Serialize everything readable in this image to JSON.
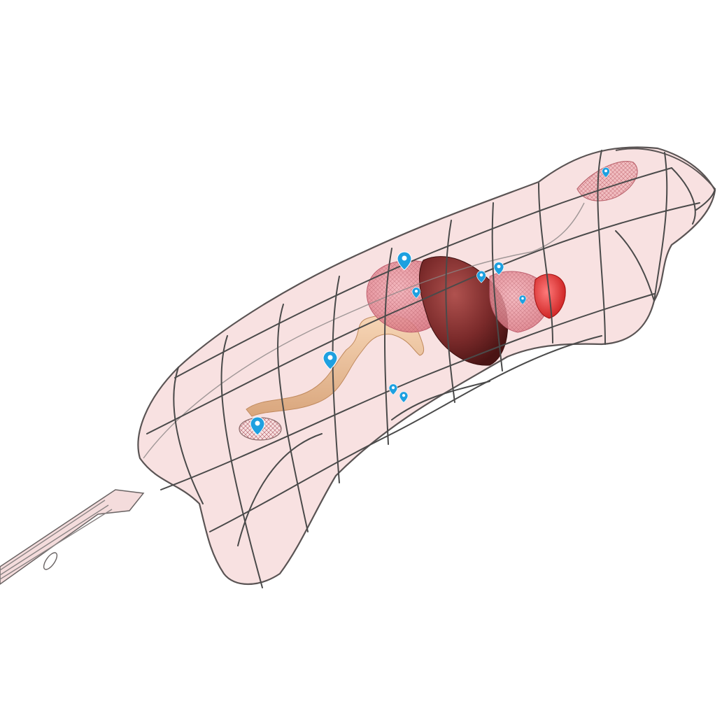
{
  "scene": {
    "background": "#ffffff",
    "colors": {
      "body_fill": "#f2c9c9",
      "body_stroke": "#4a4a4a",
      "liver": "#7a2a2a",
      "lung": "#e58a95",
      "heart": "#e23a3a",
      "intestine": "#f0c6a0",
      "brain": "#d77f86",
      "marker": "#1ea0e0"
    },
    "organs": [
      {
        "name": "brain",
        "icon": "brain-mesh"
      },
      {
        "name": "heart",
        "icon": "heart-mesh"
      },
      {
        "name": "lungs",
        "icon": "lung-mesh"
      },
      {
        "name": "liver",
        "icon": "liver-mesh"
      },
      {
        "name": "stomach",
        "icon": "stomach-mesh"
      },
      {
        "name": "intestine",
        "icon": "intestine-mesh"
      },
      {
        "name": "bladder",
        "icon": "bladder-mesh"
      }
    ],
    "markers_count": 10
  }
}
